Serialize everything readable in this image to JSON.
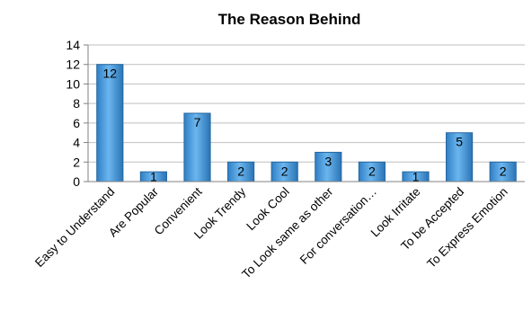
{
  "chart_data": {
    "type": "bar",
    "title": "The Reason Behind",
    "categories": [
      "Easy to Understand",
      "Are Popular",
      "Convenient",
      "Look Trendy",
      "Look Cool",
      "To Look same as other",
      "For conversation…",
      "Look Irritate",
      "To be Accepted",
      "To Express Emotion"
    ],
    "values": [
      12,
      1,
      7,
      2,
      2,
      3,
      2,
      1,
      5,
      2
    ],
    "ylim": [
      0,
      14
    ],
    "yticks": [
      0,
      2,
      4,
      6,
      8,
      10,
      12,
      14
    ],
    "grid": true,
    "legend": "none",
    "bar_color": "#4a9fe0"
  }
}
